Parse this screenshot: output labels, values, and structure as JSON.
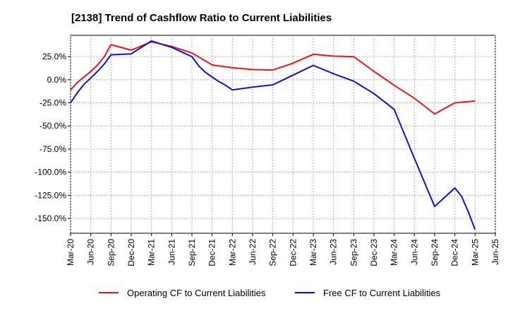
{
  "chart_data": {
    "type": "line",
    "title": "[2138]  Trend of Cashflow Ratio to Current Liabilities",
    "xlabel": "",
    "ylabel": "",
    "x_ticks": [
      "Mar-20",
      "Jun-20",
      "Sep-20",
      "Dec-20",
      "Mar-21",
      "Jun-21",
      "Sep-21",
      "Dec-21",
      "Mar-22",
      "Jun-22",
      "Sep-22",
      "Dec-22",
      "Mar-23",
      "Jun-23",
      "Sep-23",
      "Dec-23",
      "Mar-24",
      "Jun-24",
      "Sep-24",
      "Dec-24",
      "Mar-25",
      "Jun-25"
    ],
    "y_ticks": [
      25,
      0,
      -25,
      -50,
      -75,
      -100,
      -125,
      -150
    ],
    "y_tick_labels": [
      "25.0%",
      "0.0%",
      "-25.0%",
      "-50.0%",
      "-75.0%",
      "-100.0%",
      "-125.0%",
      "-150.0%"
    ],
    "ylim": [
      -166,
      48
    ],
    "grid": true,
    "legend_position": "bottom",
    "colors": {
      "operating": "#e31a1c",
      "free": "#1010d0"
    },
    "series": [
      {
        "name": "Operating CF to Current Liabilities",
        "color": "#e31a1c",
        "points": [
          [
            "Mar-20",
            -11
          ],
          [
            "Apr-20",
            -3
          ],
          [
            "May-20",
            3
          ],
          [
            "Jun-20",
            9
          ],
          [
            "Jul-20",
            16
          ],
          [
            "Aug-20",
            25
          ],
          [
            "Sep-20",
            38
          ],
          [
            "Dec-20",
            32
          ],
          [
            "Mar-21",
            41
          ],
          [
            "Jun-21",
            36
          ],
          [
            "Sep-21",
            29
          ],
          [
            "Dec-21",
            16
          ],
          [
            "Mar-22",
            13
          ],
          [
            "Jun-22",
            11
          ],
          [
            "Sep-22",
            10.5
          ],
          [
            "Dec-22",
            18
          ],
          [
            "Mar-23",
            27.5
          ],
          [
            "Jun-23",
            25.5
          ],
          [
            "Sep-23",
            25
          ],
          [
            "Dec-23",
            9
          ],
          [
            "Mar-24",
            -6
          ],
          [
            "Jun-24",
            -20
          ],
          [
            "Sep-24",
            -37
          ],
          [
            "Dec-24",
            -25
          ],
          [
            "Mar-25",
            -23
          ]
        ]
      },
      {
        "name": "Free CF to Current Liabilities",
        "color": "#1010d0",
        "points": [
          [
            "Mar-20",
            -25
          ],
          [
            "Apr-20",
            -14
          ],
          [
            "May-20",
            -5
          ],
          [
            "Jun-20",
            2
          ],
          [
            "Jul-20",
            9
          ],
          [
            "Aug-20",
            17
          ],
          [
            "Sep-20",
            27
          ],
          [
            "Dec-20",
            28
          ],
          [
            "Mar-21",
            42
          ],
          [
            "Jun-21",
            35
          ],
          [
            "Sep-21",
            25
          ],
          [
            "Oct-21",
            15
          ],
          [
            "Nov-21",
            8
          ],
          [
            "Dec-21",
            3
          ],
          [
            "Jan-22",
            -2
          ],
          [
            "Feb-22",
            -6
          ],
          [
            "Mar-22",
            -11
          ],
          [
            "Jun-22",
            -8
          ],
          [
            "Sep-22",
            -5.5
          ],
          [
            "Dec-22",
            5
          ],
          [
            "Mar-23",
            15.5
          ],
          [
            "Jun-23",
            6.5
          ],
          [
            "Sep-23",
            -1.5
          ],
          [
            "Dec-23",
            -15
          ],
          [
            "Mar-24",
            -32
          ],
          [
            "Jun-24",
            -85
          ],
          [
            "Sep-24",
            -137
          ],
          [
            "Dec-24",
            -117
          ],
          [
            "Jan-25",
            -126
          ],
          [
            "Feb-25",
            -143
          ],
          [
            "Mar-25",
            -162
          ]
        ]
      }
    ]
  }
}
